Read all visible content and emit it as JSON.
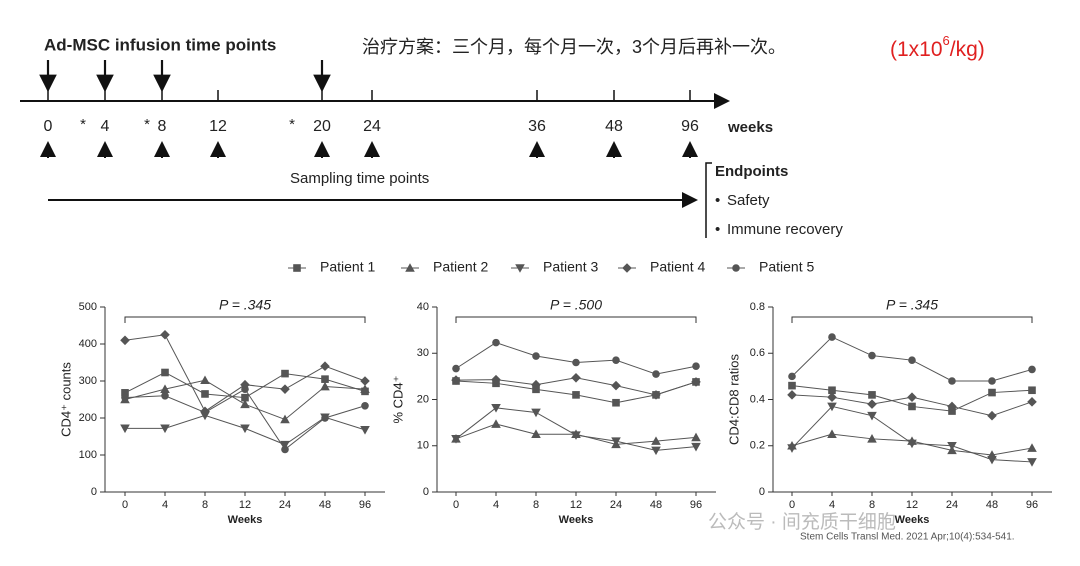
{
  "timeline": {
    "title": "Ad-MSC infusion time points",
    "note": "治疗方案：三个月，每个月一次，3个月后再补一次。",
    "dose": [
      "(1x10",
      "6",
      "/kg)"
    ],
    "ticks": [
      0,
      4,
      8,
      12,
      20,
      24,
      36,
      48,
      96
    ],
    "unit": "weeks",
    "infusion_weeks": [
      0,
      4,
      8,
      20
    ],
    "asterisks": [
      "*",
      "*",
      "*"
    ],
    "sampling_label": "Sampling time points",
    "endpoints": {
      "title": "Endpoints",
      "items": [
        "Safety",
        "Immune recovery"
      ]
    }
  },
  "chart_data": [
    {
      "type": "line",
      "y_label": "CD4⁺ counts",
      "x_label": "Weeks",
      "annotation": "P = .345",
      "categories": [
        "0",
        "4",
        "8",
        "12",
        "24",
        "48",
        "96"
      ],
      "ylim": [
        0,
        500
      ],
      "yticks": [
        0,
        100,
        200,
        300,
        400,
        500
      ],
      "series": [
        {
          "name": "Patient 1",
          "marker": "square",
          "color": "#555555",
          "values": [
            268,
            323,
            265,
            255,
            320,
            305,
            272
          ]
        },
        {
          "name": "Patient 2",
          "marker": "triangle-up",
          "color": "#555555",
          "values": [
            250,
            278,
            302,
            237,
            196,
            285,
            278
          ]
        },
        {
          "name": "Patient 3",
          "marker": "triangle-down",
          "color": "#555555",
          "values": [
            172,
            172,
            207,
            172,
            128,
            202,
            168
          ]
        },
        {
          "name": "Patient 4",
          "marker": "diamond",
          "color": "#555555",
          "values": [
            410,
            425,
            218,
            290,
            278,
            340,
            300
          ]
        },
        {
          "name": "Patient 5",
          "marker": "circle",
          "color": "#555555",
          "values": [
            255,
            260,
            215,
            278,
            115,
            200,
            233
          ]
        }
      ]
    },
    {
      "type": "line",
      "y_label": "% CD4⁺",
      "x_label": "Weeks",
      "annotation": "P = .500",
      "categories": [
        "0",
        "4",
        "8",
        "12",
        "24",
        "48",
        "96"
      ],
      "ylim": [
        0,
        40
      ],
      "yticks": [
        0,
        10,
        20,
        30,
        40
      ],
      "series": [
        {
          "name": "Patient 1",
          "marker": "square",
          "color": "#555555",
          "values": [
            24,
            23.5,
            22.2,
            21,
            19.3,
            21,
            23.8
          ]
        },
        {
          "name": "Patient 2",
          "marker": "triangle-up",
          "color": "#555555",
          "values": [
            11.5,
            14.7,
            12.5,
            12.5,
            10.3,
            11,
            11.8
          ]
        },
        {
          "name": "Patient 3",
          "marker": "triangle-down",
          "color": "#555555",
          "values": [
            11.5,
            18.2,
            17.2,
            12.3,
            11,
            9,
            9.8
          ]
        },
        {
          "name": "Patient 4",
          "marker": "diamond",
          "color": "#555555",
          "values": [
            24.2,
            24.3,
            23.2,
            24.7,
            23,
            21,
            23.8
          ]
        },
        {
          "name": "Patient 5",
          "marker": "circle",
          "color": "#555555",
          "values": [
            26.7,
            32.3,
            29.4,
            28,
            28.5,
            25.5,
            27.2
          ]
        }
      ]
    },
    {
      "type": "line",
      "y_label": "CD4:CD8 ratios",
      "x_label": "Weeks",
      "annotation": "P = .345",
      "categories": [
        "0",
        "4",
        "8",
        "12",
        "24",
        "48",
        "96"
      ],
      "ylim": [
        0,
        0.8
      ],
      "yticks": [
        0,
        0.2,
        0.4,
        0.6,
        0.8
      ],
      "series": [
        {
          "name": "Patient 1",
          "marker": "square",
          "color": "#555555",
          "values": [
            0.46,
            0.44,
            0.42,
            0.37,
            0.35,
            0.43,
            0.44
          ]
        },
        {
          "name": "Patient 2",
          "marker": "triangle-up",
          "color": "#555555",
          "values": [
            0.2,
            0.25,
            0.23,
            0.22,
            0.18,
            0.16,
            0.19
          ]
        },
        {
          "name": "Patient 3",
          "marker": "triangle-down",
          "color": "#555555",
          "values": [
            0.19,
            0.37,
            0.33,
            0.21,
            0.2,
            0.14,
            0.13
          ]
        },
        {
          "name": "Patient 4",
          "marker": "diamond",
          "color": "#555555",
          "values": [
            0.42,
            0.41,
            0.38,
            0.41,
            0.37,
            0.33,
            0.39
          ]
        },
        {
          "name": "Patient 5",
          "marker": "circle",
          "color": "#555555",
          "values": [
            0.5,
            0.67,
            0.59,
            0.57,
            0.48,
            0.48,
            0.53
          ]
        }
      ]
    }
  ],
  "watermark": "公众号 · 间充质干细胞",
  "citation": "Stem Cells Transl Med. 2021 Apr;10(4):534-541."
}
